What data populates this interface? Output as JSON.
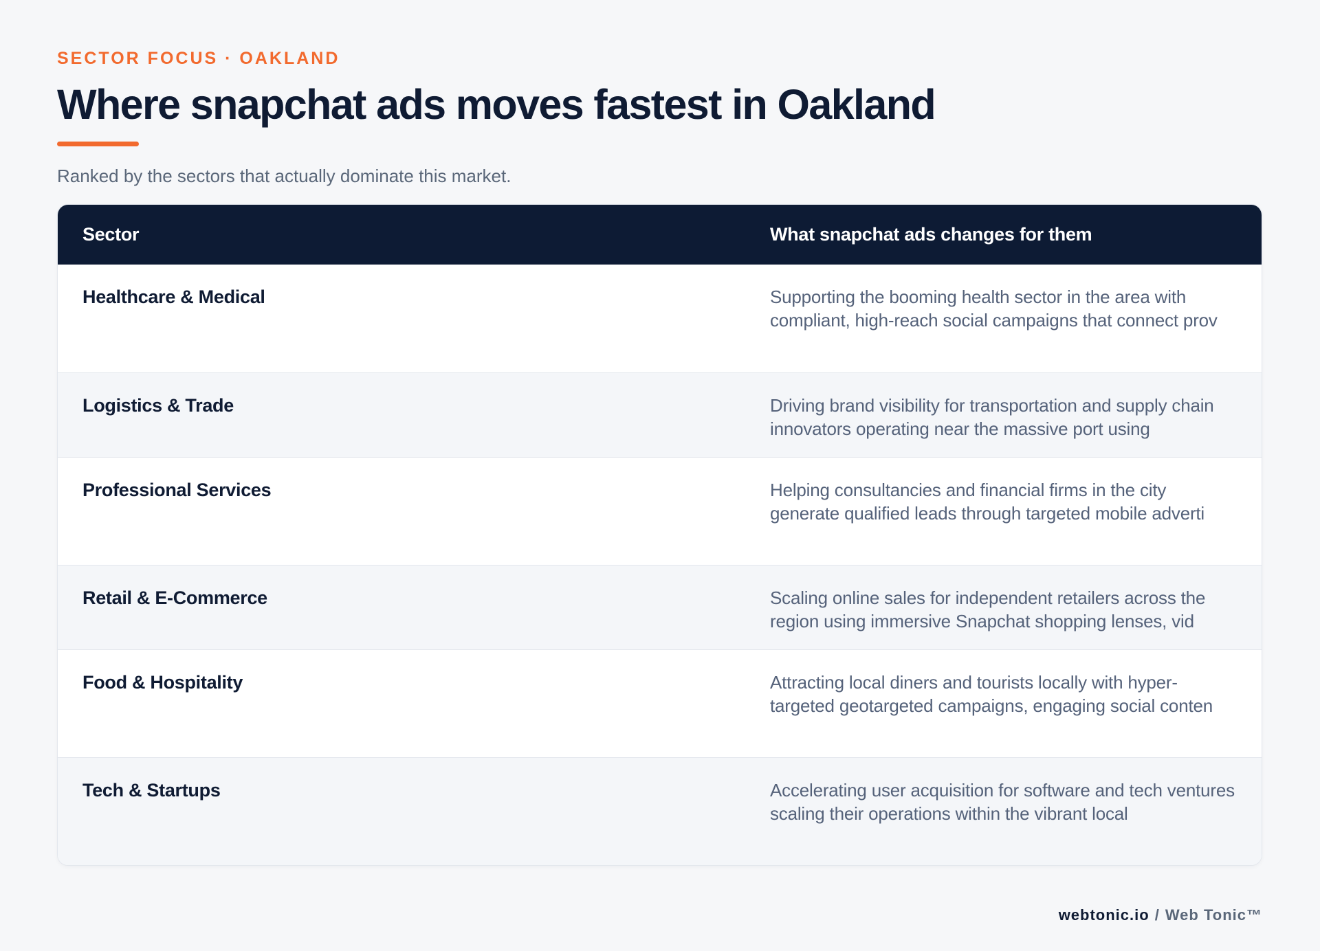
{
  "header": {
    "eyebrow": "SECTOR FOCUS · OAKLAND",
    "title": "Where snapchat ads moves fastest in Oakland",
    "subtitle": "Ranked by the sectors that actually dominate this market."
  },
  "table": {
    "columns": [
      "Sector",
      "What snapchat ads changes for them"
    ],
    "rows": [
      {
        "sector": "Healthcare & Medical",
        "description": "Supporting the booming health sector in the area with compliant, high-reach social campaigns that connect prov"
      },
      {
        "sector": "Logistics & Trade",
        "description": "Driving brand visibility for transportation and supply chain innovators operating near the massive port using"
      },
      {
        "sector": "Professional Services",
        "description": "Helping consultancies and financial firms in the city generate qualified leads through targeted mobile adverti"
      },
      {
        "sector": "Retail & E-Commerce",
        "description": "Scaling online sales for independent retailers across the region using immersive Snapchat shopping lenses, vid"
      },
      {
        "sector": "Food & Hospitality",
        "description": "Attracting local diners and tourists locally with hyper-targeted geotargeted campaigns, engaging social conten"
      },
      {
        "sector": "Tech & Startups",
        "description": "Accelerating user acquisition for software and tech ventures scaling their operations within the vibrant local"
      }
    ]
  },
  "footer": {
    "domain": "webtonic.io",
    "separator": "/",
    "brand": "Web Tonic™"
  },
  "colors": {
    "accent": "#f26a2e",
    "navy": "#0d1b34",
    "background": "#f6f7f9"
  }
}
